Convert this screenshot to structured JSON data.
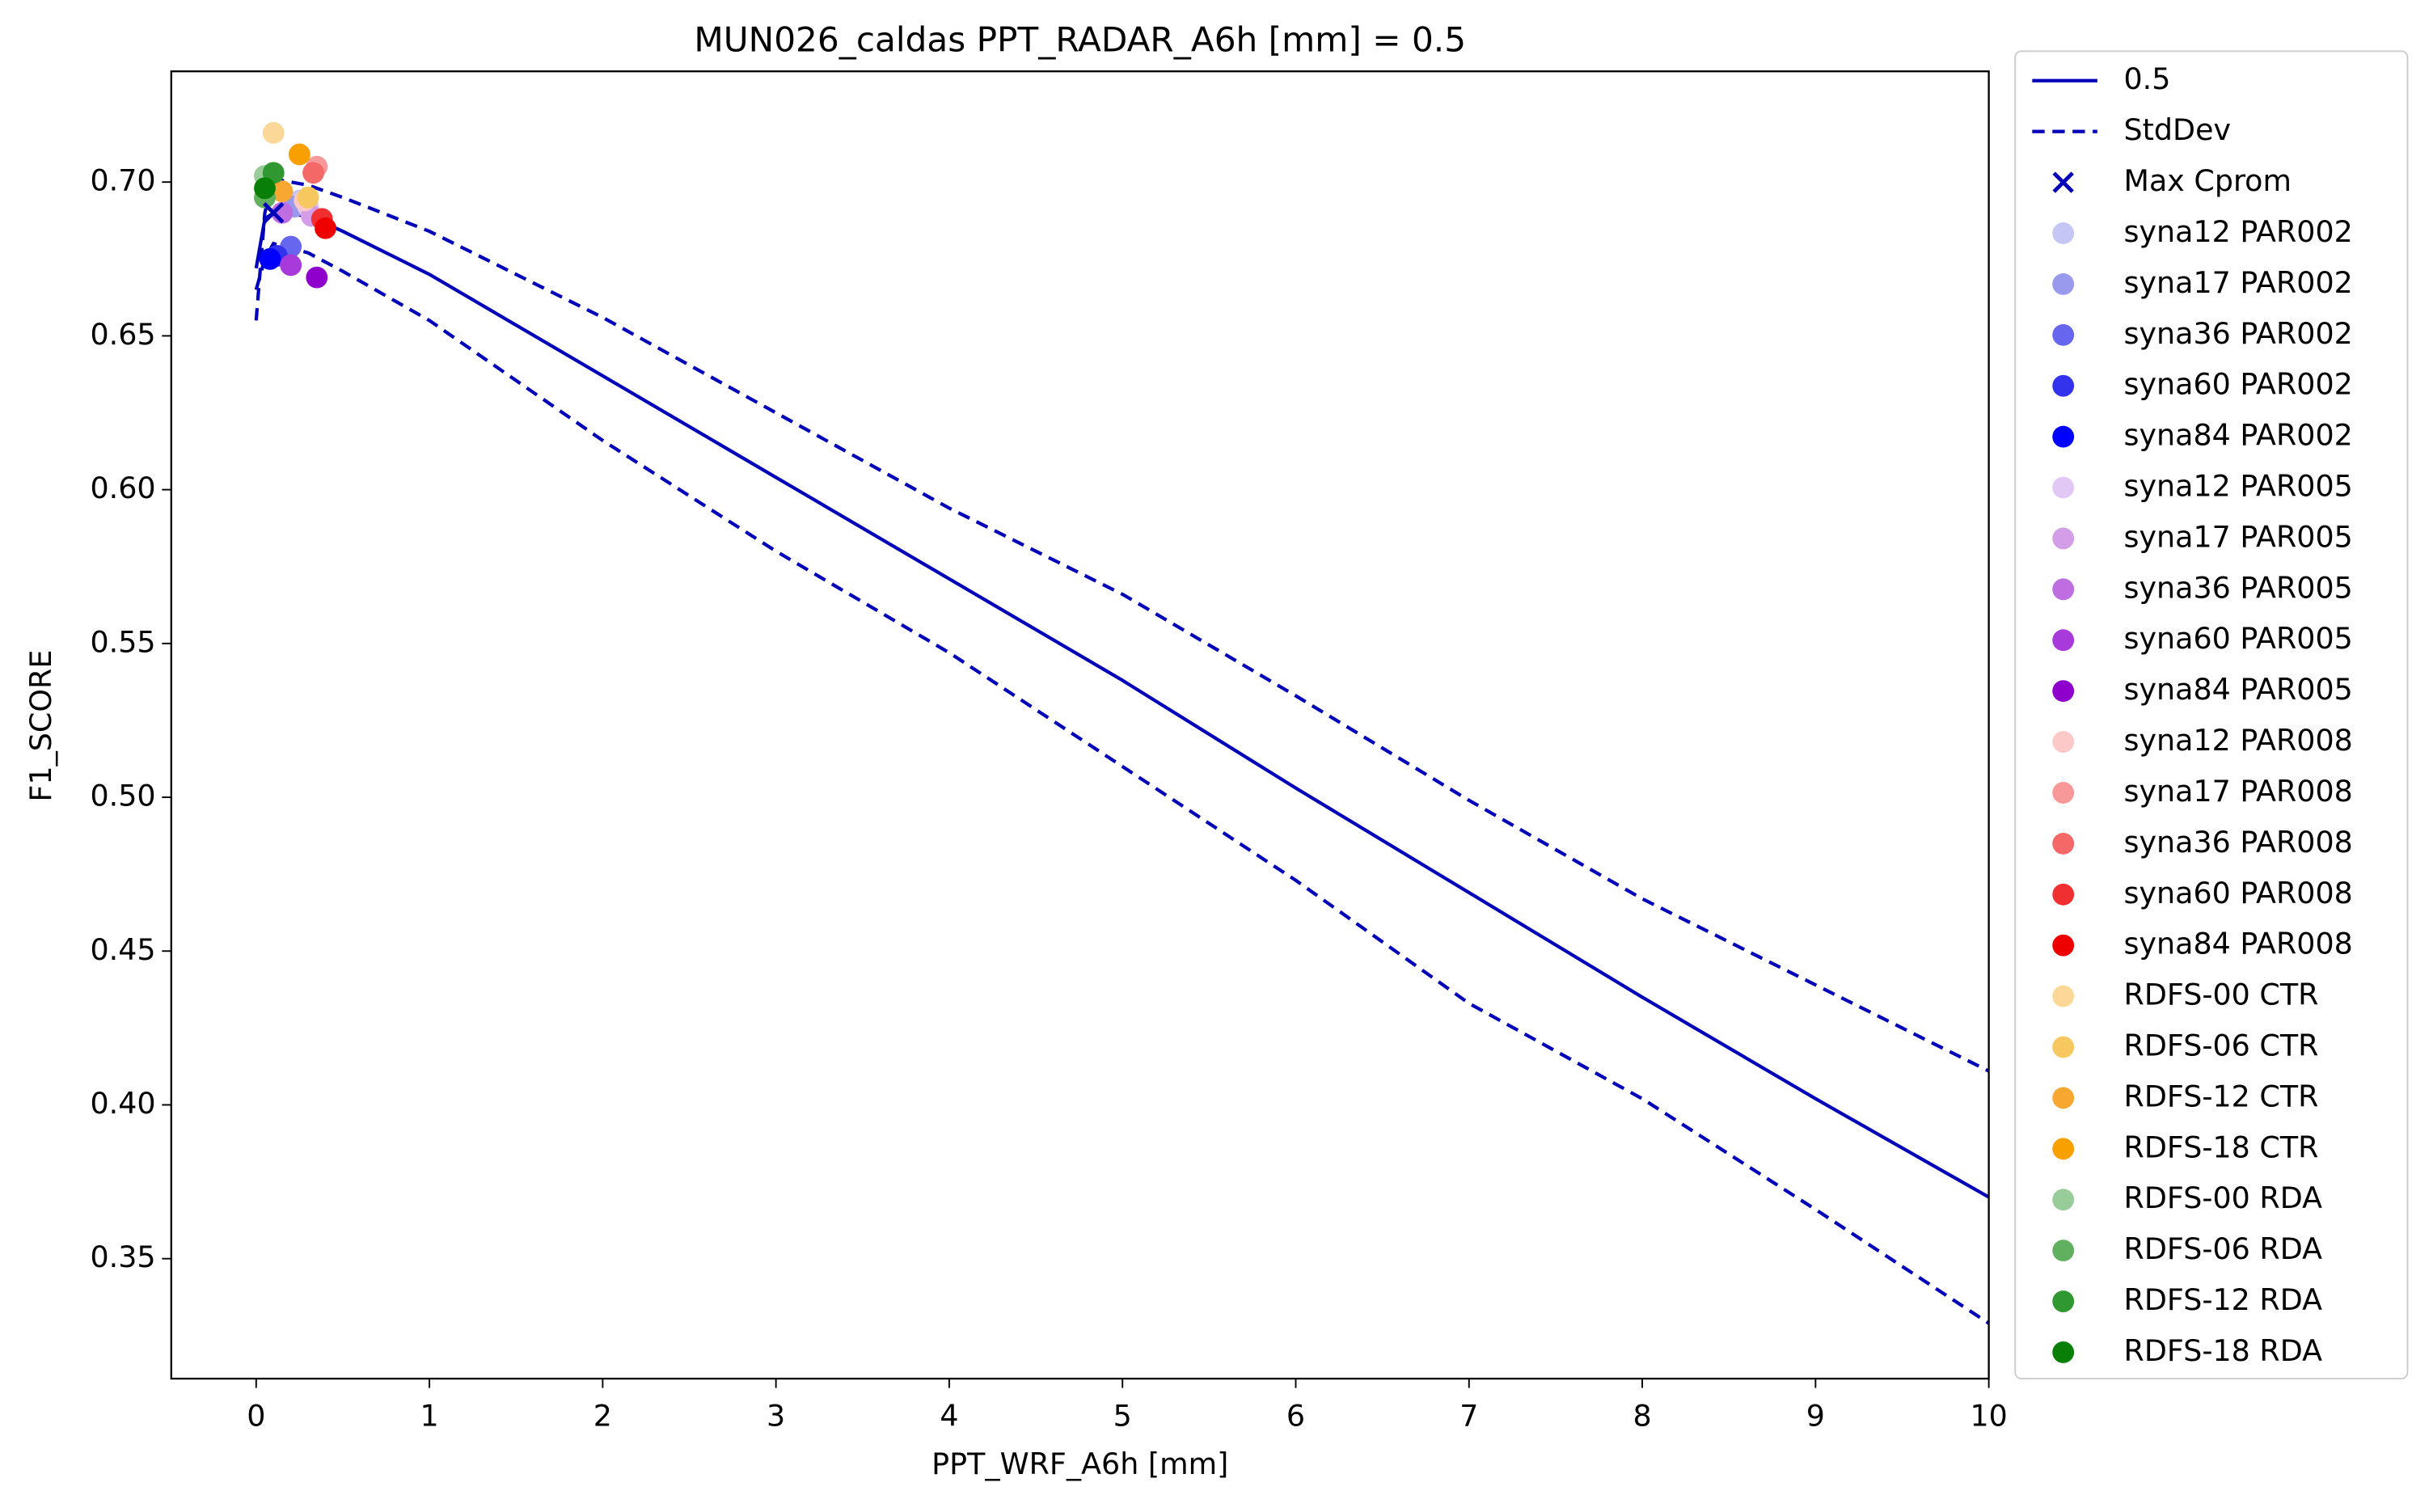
{
  "chart_data": {
    "type": "line",
    "title": "MUN026_caldas    PPT_RADAR_A6h [mm] = 0.5",
    "xlabel": "PPT_WRF_A6h [mm]",
    "ylabel": "F1_SCORE",
    "x": [
      0,
      0.05,
      0.1,
      0.3,
      0.5,
      1,
      2,
      3,
      4,
      5,
      6,
      7,
      8,
      9,
      10
    ],
    "series": [
      {
        "name": "0.5",
        "color": "#0000bb",
        "style": "solid",
        "values": [
          0.672,
          0.688,
          0.69,
          0.689,
          0.684,
          0.67,
          0.637,
          0.604,
          0.571,
          0.538,
          0.503,
          0.469,
          0.435,
          0.402,
          0.37
        ]
      },
      {
        "name": "StdDev",
        "color": "#0000bb",
        "style": "dashed",
        "values": [
          0.655,
          0.69,
          0.701,
          0.699,
          0.695,
          0.684,
          0.656,
          0.625,
          0.594,
          0.566,
          0.533,
          0.499,
          0.467,
          0.439,
          0.411
        ]
      },
      {
        "color": "#0000bb",
        "style": "dashed",
        "values": [
          0.665,
          0.675,
          0.68,
          0.677,
          0.671,
          0.655,
          0.616,
          0.58,
          0.547,
          0.51,
          0.473,
          0.433,
          0.402,
          0.366,
          0.329
        ]
      }
    ],
    "marker": {
      "name": "Max Cprom",
      "color": "#0000bb",
      "x": 0.1,
      "y": 0.69
    },
    "points": [
      {
        "name": "syna12 PAR002",
        "color": "#c6c6f5",
        "x": 0.25,
        "y": 0.694
      },
      {
        "name": "syna17 PAR002",
        "color": "#9999ee",
        "x": 0.22,
        "y": 0.692
      },
      {
        "name": "syna36 PAR002",
        "color": "#6666ee",
        "x": 0.2,
        "y": 0.679
      },
      {
        "name": "syna60 PAR002",
        "color": "#3333ee",
        "x": 0.12,
        "y": 0.676
      },
      {
        "name": "syna84 PAR002",
        "color": "#0000ff",
        "x": 0.08,
        "y": 0.675
      },
      {
        "name": "syna12 PAR005",
        "color": "#e2c8f5",
        "x": 0.3,
        "y": 0.692
      },
      {
        "name": "syna17 PAR005",
        "color": "#d49de8",
        "x": 0.32,
        "y": 0.689
      },
      {
        "name": "syna36 PAR005",
        "color": "#be6ee0",
        "x": 0.15,
        "y": 0.69
      },
      {
        "name": "syna60 PAR005",
        "color": "#a83adb",
        "x": 0.2,
        "y": 0.673
      },
      {
        "name": "syna84 PAR005",
        "color": "#9000cc",
        "x": 0.35,
        "y": 0.669
      },
      {
        "name": "syna12 PAR008",
        "color": "#fcc8c8",
        "x": 0.28,
        "y": 0.694
      },
      {
        "name": "syna17 PAR008",
        "color": "#f89898",
        "x": 0.35,
        "y": 0.705
      },
      {
        "name": "syna36 PAR008",
        "color": "#f46868",
        "x": 0.33,
        "y": 0.703
      },
      {
        "name": "syna60 PAR008",
        "color": "#f03030",
        "x": 0.38,
        "y": 0.688
      },
      {
        "name": "syna84 PAR008",
        "color": "#ee0000",
        "x": 0.4,
        "y": 0.685
      },
      {
        "name": "RDFS-00 CTR",
        "color": "#fcd898",
        "x": 0.1,
        "y": 0.716
      },
      {
        "name": "RDFS-06 CTR",
        "color": "#f8c860",
        "x": 0.3,
        "y": 0.695
      },
      {
        "name": "RDFS-12 CTR",
        "color": "#f8a830",
        "x": 0.15,
        "y": 0.697
      },
      {
        "name": "RDFS-18 CTR",
        "color": "#f8a000",
        "x": 0.25,
        "y": 0.709
      },
      {
        "name": "RDFS-00 RDA",
        "color": "#98cc98",
        "x": 0.05,
        "y": 0.702
      },
      {
        "name": "RDFS-06 RDA",
        "color": "#60b060",
        "x": 0.05,
        "y": 0.695
      },
      {
        "name": "RDFS-12 RDA",
        "color": "#309830",
        "x": 0.1,
        "y": 0.703
      },
      {
        "name": "RDFS-18 RDA",
        "color": "#088008",
        "x": 0.05,
        "y": 0.698
      }
    ],
    "xlim": [
      -0.49,
      10
    ],
    "xticks": [
      0,
      1,
      2,
      3,
      4,
      5,
      6,
      7,
      8,
      9,
      10
    ],
    "ylim": [
      0.311,
      0.736
    ],
    "yticks": [
      {
        "value": 0.35,
        "label": "0.35"
      },
      {
        "value": 0.4,
        "label": "0.40"
      },
      {
        "value": 0.45,
        "label": "0.45"
      },
      {
        "value": 0.5,
        "label": "0.50"
      },
      {
        "value": 0.55,
        "label": "0.55"
      },
      {
        "value": 0.6,
        "label": "0.60"
      },
      {
        "value": 0.65,
        "label": "0.65"
      },
      {
        "value": 0.7,
        "label": "0.70"
      }
    ],
    "grid": false,
    "legend": "outside right"
  }
}
